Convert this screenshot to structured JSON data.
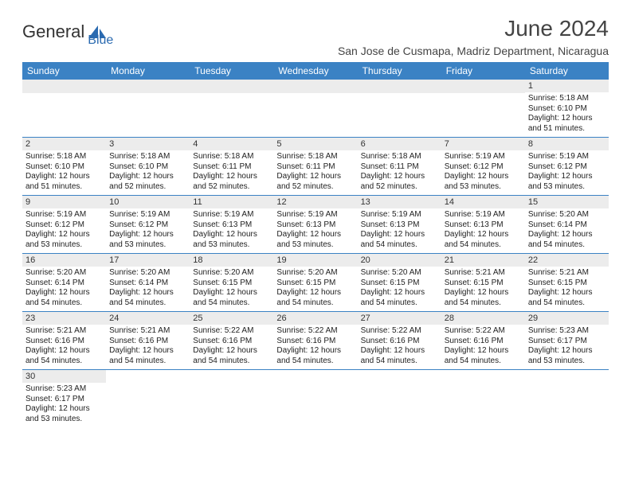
{
  "header": {
    "logo_text_1": "General",
    "logo_text_2": "Blue",
    "month_title": "June 2024",
    "location": "San Jose de Cusmapa, Madriz Department, Nicaragua"
  },
  "colors": {
    "header_bg": "#3b82c4",
    "header_fg": "#ffffff",
    "daynum_bg": "#ececec",
    "row_border": "#3b82c4",
    "text": "#222222",
    "logo_blue": "#2a6ab0"
  },
  "days_of_week": [
    "Sunday",
    "Monday",
    "Tuesday",
    "Wednesday",
    "Thursday",
    "Friday",
    "Saturday"
  ],
  "weeks": [
    [
      null,
      null,
      null,
      null,
      null,
      null,
      {
        "n": "1",
        "sr": "5:18 AM",
        "ss": "6:10 PM",
        "dl": "12 hours and 51 minutes."
      }
    ],
    [
      {
        "n": "2",
        "sr": "5:18 AM",
        "ss": "6:10 PM",
        "dl": "12 hours and 51 minutes."
      },
      {
        "n": "3",
        "sr": "5:18 AM",
        "ss": "6:10 PM",
        "dl": "12 hours and 52 minutes."
      },
      {
        "n": "4",
        "sr": "5:18 AM",
        "ss": "6:11 PM",
        "dl": "12 hours and 52 minutes."
      },
      {
        "n": "5",
        "sr": "5:18 AM",
        "ss": "6:11 PM",
        "dl": "12 hours and 52 minutes."
      },
      {
        "n": "6",
        "sr": "5:18 AM",
        "ss": "6:11 PM",
        "dl": "12 hours and 52 minutes."
      },
      {
        "n": "7",
        "sr": "5:19 AM",
        "ss": "6:12 PM",
        "dl": "12 hours and 53 minutes."
      },
      {
        "n": "8",
        "sr": "5:19 AM",
        "ss": "6:12 PM",
        "dl": "12 hours and 53 minutes."
      }
    ],
    [
      {
        "n": "9",
        "sr": "5:19 AM",
        "ss": "6:12 PM",
        "dl": "12 hours and 53 minutes."
      },
      {
        "n": "10",
        "sr": "5:19 AM",
        "ss": "6:12 PM",
        "dl": "12 hours and 53 minutes."
      },
      {
        "n": "11",
        "sr": "5:19 AM",
        "ss": "6:13 PM",
        "dl": "12 hours and 53 minutes."
      },
      {
        "n": "12",
        "sr": "5:19 AM",
        "ss": "6:13 PM",
        "dl": "12 hours and 53 minutes."
      },
      {
        "n": "13",
        "sr": "5:19 AM",
        "ss": "6:13 PM",
        "dl": "12 hours and 54 minutes."
      },
      {
        "n": "14",
        "sr": "5:19 AM",
        "ss": "6:13 PM",
        "dl": "12 hours and 54 minutes."
      },
      {
        "n": "15",
        "sr": "5:20 AM",
        "ss": "6:14 PM",
        "dl": "12 hours and 54 minutes."
      }
    ],
    [
      {
        "n": "16",
        "sr": "5:20 AM",
        "ss": "6:14 PM",
        "dl": "12 hours and 54 minutes."
      },
      {
        "n": "17",
        "sr": "5:20 AM",
        "ss": "6:14 PM",
        "dl": "12 hours and 54 minutes."
      },
      {
        "n": "18",
        "sr": "5:20 AM",
        "ss": "6:15 PM",
        "dl": "12 hours and 54 minutes."
      },
      {
        "n": "19",
        "sr": "5:20 AM",
        "ss": "6:15 PM",
        "dl": "12 hours and 54 minutes."
      },
      {
        "n": "20",
        "sr": "5:20 AM",
        "ss": "6:15 PM",
        "dl": "12 hours and 54 minutes."
      },
      {
        "n": "21",
        "sr": "5:21 AM",
        "ss": "6:15 PM",
        "dl": "12 hours and 54 minutes."
      },
      {
        "n": "22",
        "sr": "5:21 AM",
        "ss": "6:15 PM",
        "dl": "12 hours and 54 minutes."
      }
    ],
    [
      {
        "n": "23",
        "sr": "5:21 AM",
        "ss": "6:16 PM",
        "dl": "12 hours and 54 minutes."
      },
      {
        "n": "24",
        "sr": "5:21 AM",
        "ss": "6:16 PM",
        "dl": "12 hours and 54 minutes."
      },
      {
        "n": "25",
        "sr": "5:22 AM",
        "ss": "6:16 PM",
        "dl": "12 hours and 54 minutes."
      },
      {
        "n": "26",
        "sr": "5:22 AM",
        "ss": "6:16 PM",
        "dl": "12 hours and 54 minutes."
      },
      {
        "n": "27",
        "sr": "5:22 AM",
        "ss": "6:16 PM",
        "dl": "12 hours and 54 minutes."
      },
      {
        "n": "28",
        "sr": "5:22 AM",
        "ss": "6:16 PM",
        "dl": "12 hours and 54 minutes."
      },
      {
        "n": "29",
        "sr": "5:23 AM",
        "ss": "6:17 PM",
        "dl": "12 hours and 53 minutes."
      }
    ],
    [
      {
        "n": "30",
        "sr": "5:23 AM",
        "ss": "6:17 PM",
        "dl": "12 hours and 53 minutes."
      },
      null,
      null,
      null,
      null,
      null,
      null
    ]
  ],
  "labels": {
    "sunrise_prefix": "Sunrise: ",
    "sunset_prefix": "Sunset: ",
    "daylight_prefix": "Daylight: "
  }
}
